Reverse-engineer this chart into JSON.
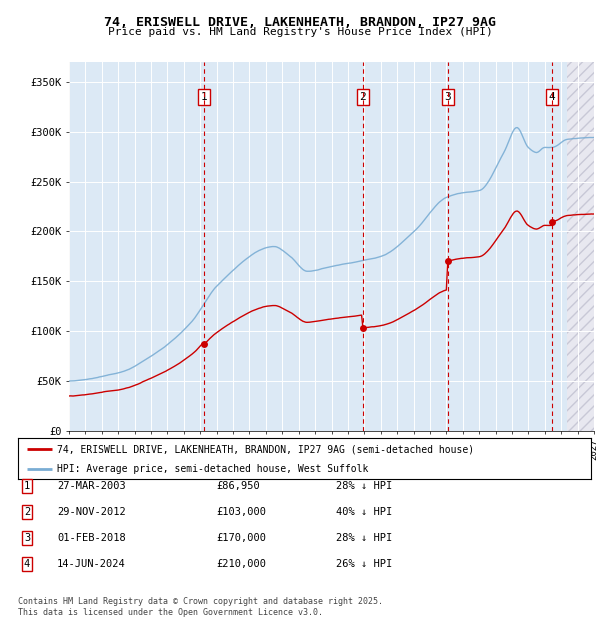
{
  "title": "74, ERISWELL DRIVE, LAKENHEATH, BRANDON, IP27 9AG",
  "subtitle": "Price paid vs. HM Land Registry's House Price Index (HPI)",
  "ylim": [
    0,
    370000
  ],
  "xlim_start": 1995.0,
  "xlim_end": 2027.0,
  "background_color": "#dce9f5",
  "grid_color": "#ffffff",
  "hpi_color": "#7aadd4",
  "price_color": "#cc0000",
  "vline_color": "#cc0000",
  "purchases": [
    {
      "label": "1",
      "date_num": 2003.24,
      "price": 86950
    },
    {
      "label": "2",
      "date_num": 2012.91,
      "price": 103000
    },
    {
      "label": "3",
      "date_num": 2018.08,
      "price": 170000
    },
    {
      "label": "4",
      "date_num": 2024.45,
      "price": 210000
    }
  ],
  "legend_entries": [
    "74, ERISWELL DRIVE, LAKENHEATH, BRANDON, IP27 9AG (semi-detached house)",
    "HPI: Average price, semi-detached house, West Suffolk"
  ],
  "table_rows": [
    [
      "1",
      "27-MAR-2003",
      "£86,950",
      "28% ↓ HPI"
    ],
    [
      "2",
      "29-NOV-2012",
      "£103,000",
      "40% ↓ HPI"
    ],
    [
      "3",
      "01-FEB-2018",
      "£170,000",
      "28% ↓ HPI"
    ],
    [
      "4",
      "14-JUN-2024",
      "£210,000",
      "26% ↓ HPI"
    ]
  ],
  "footer": "Contains HM Land Registry data © Crown copyright and database right 2025.\nThis data is licensed under the Open Government Licence v3.0.",
  "current_year": 2025.37
}
